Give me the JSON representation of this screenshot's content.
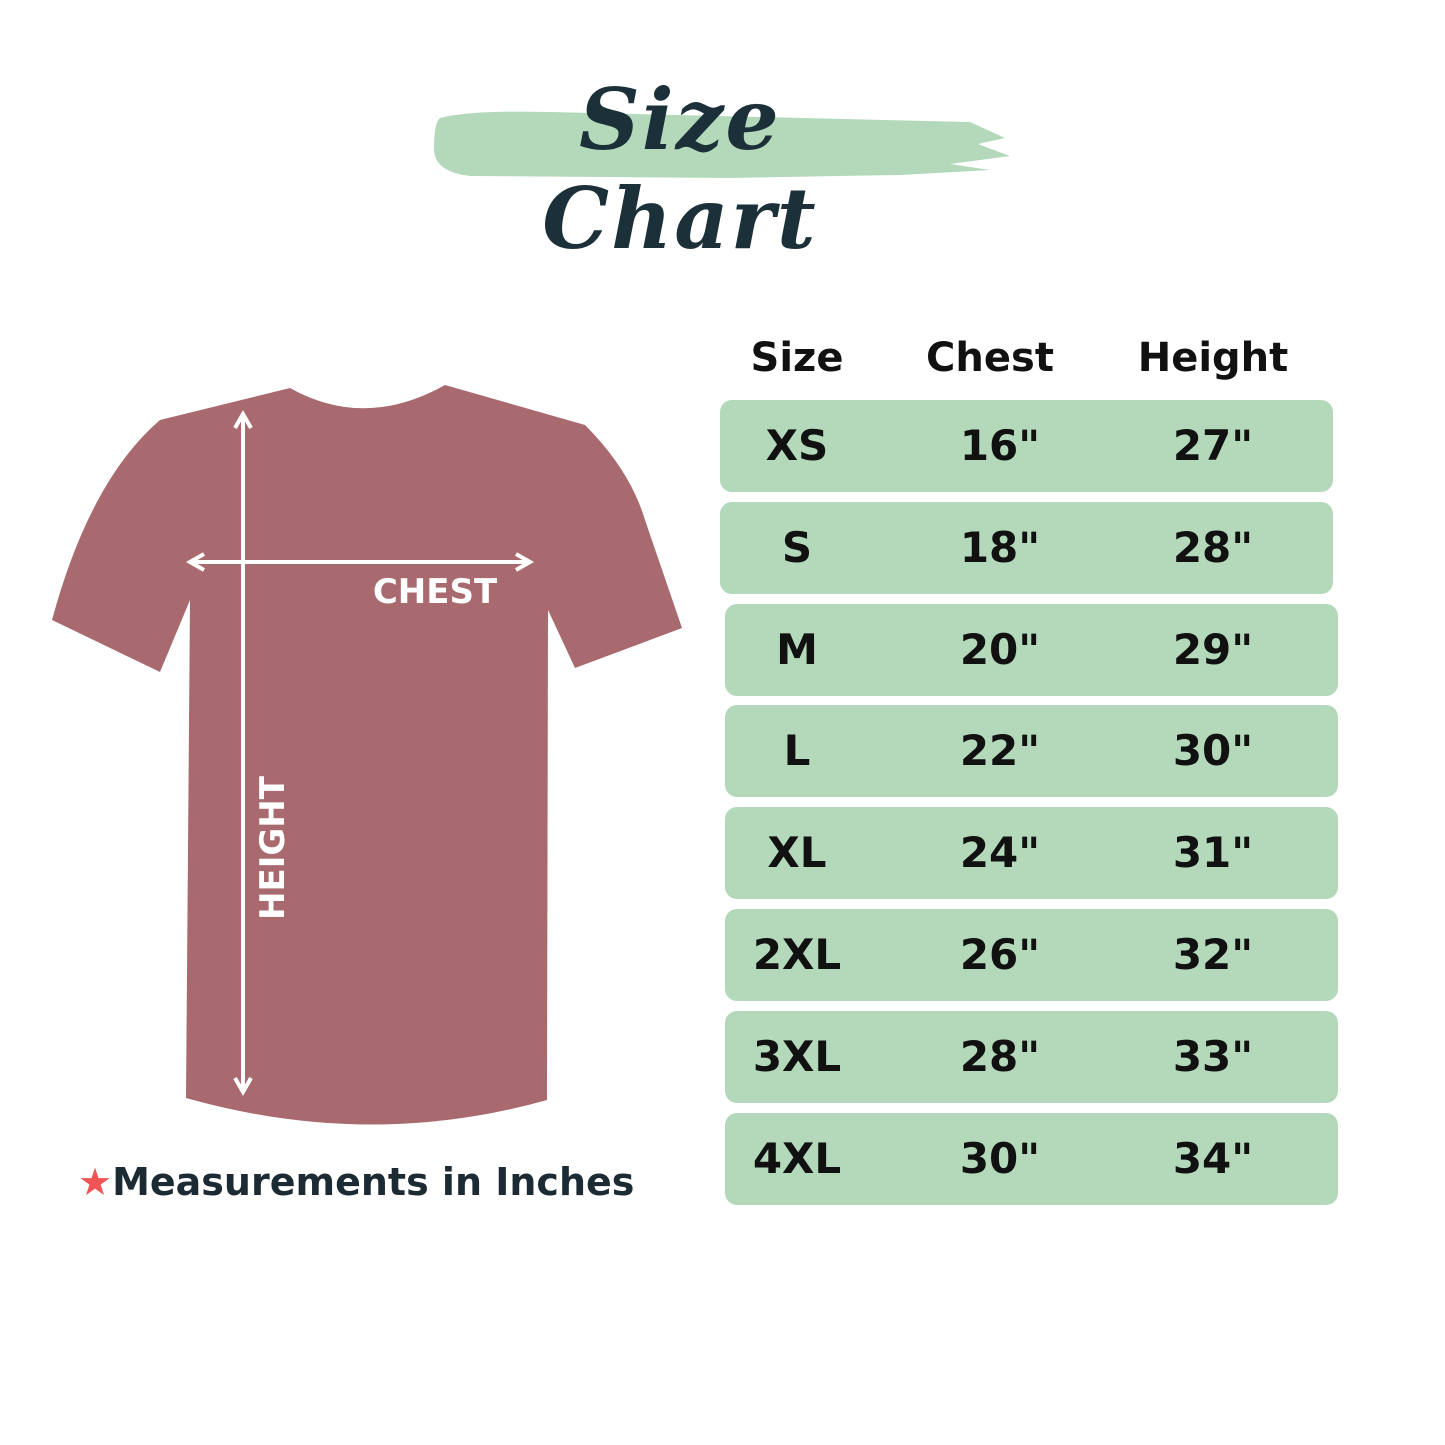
{
  "title": "Size Chart",
  "colors": {
    "accent_green": "#b3d9ba",
    "title_text": "#1b3039",
    "shirt": "#a86a6e",
    "star": "#f05454"
  },
  "shirt_labels": {
    "chest": "CHEST",
    "height": "HEIGHT"
  },
  "table": {
    "headers": [
      "Size",
      "Chest",
      "Height"
    ],
    "rows": [
      {
        "size": "XS",
        "chest": "16\"",
        "height": "27\""
      },
      {
        "size": "S",
        "chest": "18\"",
        "height": "28\""
      },
      {
        "size": "M",
        "chest": "20\"",
        "height": "29\""
      },
      {
        "size": "L",
        "chest": "22\"",
        "height": "30\""
      },
      {
        "size": "XL",
        "chest": "24\"",
        "height": "31\""
      },
      {
        "size": "2XL",
        "chest": "26\"",
        "height": "32\""
      },
      {
        "size": "3XL",
        "chest": "28\"",
        "height": "33\""
      },
      {
        "size": "4XL",
        "chest": "30\"",
        "height": "34\""
      }
    ]
  },
  "note": {
    "icon": "star-icon",
    "text": "Measurements in Inches"
  }
}
